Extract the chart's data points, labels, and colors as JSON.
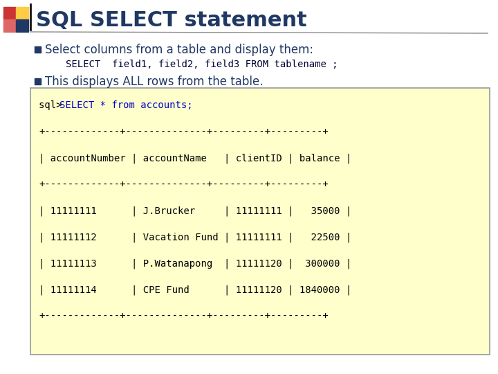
{
  "title": "SQL SELECT statement",
  "title_color": "#1F3864",
  "title_fontsize": 22,
  "bullet1": "Select columns from a table and display them:",
  "code1": "SELECT  field1, field2, field3 FROM tablename ;",
  "bullet2": "This displays ALL rows from the table.",
  "bullet_color": "#1F3864",
  "bullet_square_color": "#1F3864",
  "code_box_bg": "#FFFFCC",
  "code_box_border": "#999999",
  "select_color": "#0000CC",
  "bg_color": "#FFFFFF",
  "divider_color": "#888888",
  "inline_code_color": "#000033",
  "sq_red": "#CC3333",
  "sq_orange": "#FF8800",
  "sq_yellow": "#FFCC44",
  "sq_blue": "#1F3864",
  "code_lines": [
    "sql> SELECT * from accounts;",
    "+-------------+--------------+---------+---------+",
    "| accountNumber | accountName   | clientID | balance |",
    "+-------------+--------------+---------+---------+",
    "| 11111111      | J.Brucker     | 11111111 |   35000 |",
    "| 11111112      | Vacation Fund | 11111111 |   22500 |",
    "| 11111113      | P.Watanapong  | 11111120 |  300000 |",
    "| 11111114      | CPE Fund      | 11111120 | 1840000 |",
    "+-------------+--------------+---------+---------+"
  ]
}
